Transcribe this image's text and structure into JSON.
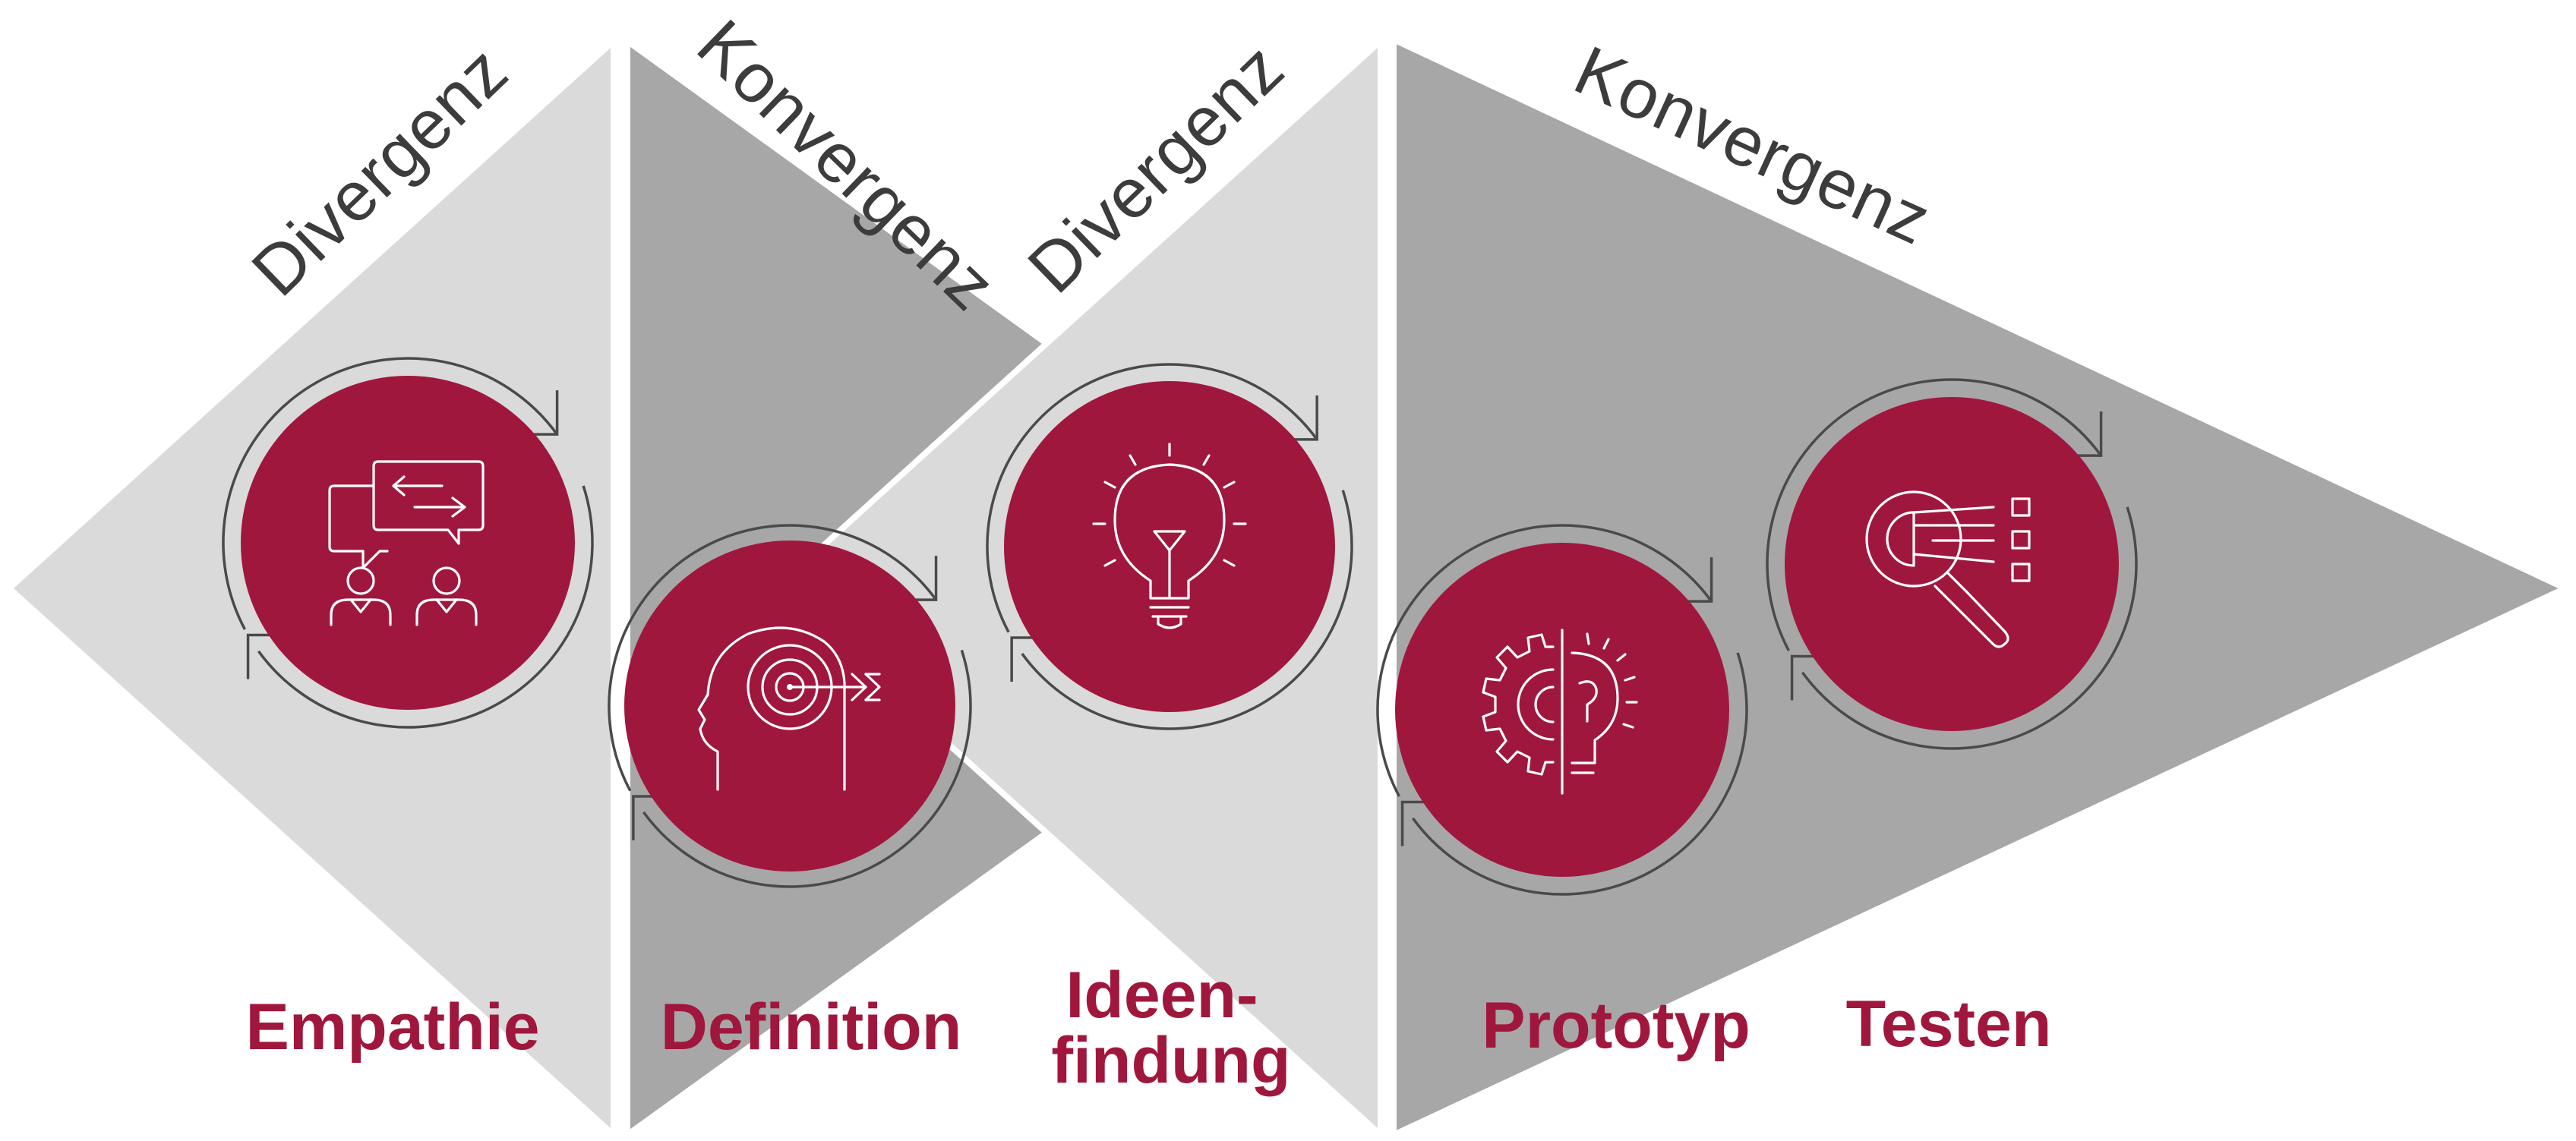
{
  "colors": {
    "light_gray": "#dadada",
    "dark_gray": "#a7a7a7",
    "accent": "#a0173e",
    "text_dark": "#3c3c3c",
    "ring": "#4a4a4a",
    "icon_stroke": "#ffffff",
    "background": "#ffffff"
  },
  "sections": [
    {
      "label": "Divergenz"
    },
    {
      "label": "Konvergenz"
    },
    {
      "label": "Divergenz"
    },
    {
      "label": "Konvergenz"
    }
  ],
  "phases": [
    {
      "label_lines": [
        "Empathie"
      ],
      "icon": "conversation-icon"
    },
    {
      "label_lines": [
        "Definition"
      ],
      "icon": "head-target-icon"
    },
    {
      "label_lines": [
        "Ideen-",
        "findung"
      ],
      "icon": "lightbulb-icon"
    },
    {
      "label_lines": [
        "Prototyp"
      ],
      "icon": "gear-bulb-icon"
    },
    {
      "label_lines": [
        "Testen"
      ],
      "icon": "magnifier-checklist-icon"
    }
  ]
}
